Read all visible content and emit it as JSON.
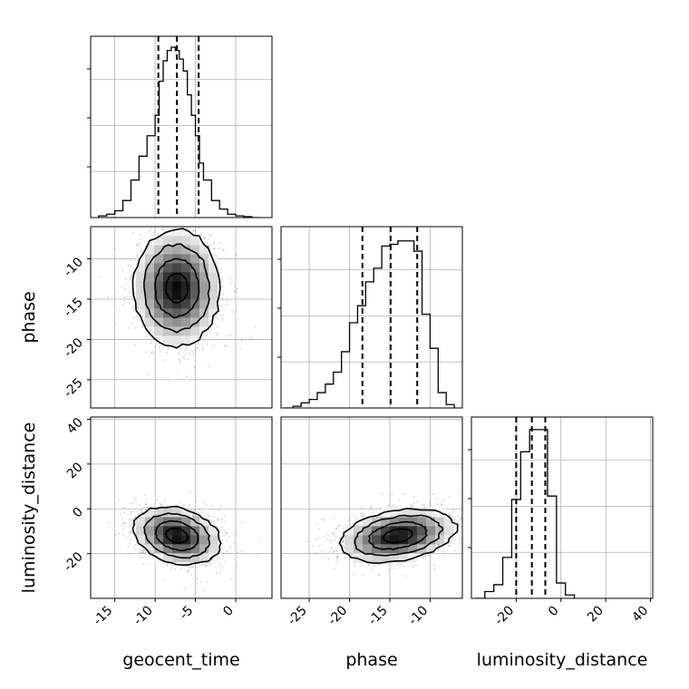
{
  "chart_data": {
    "type": "corner",
    "parameters": [
      "geocent_time",
      "phase",
      "luminosity_distance"
    ],
    "grid": true,
    "histograms": [
      {
        "parameter": "geocent_time",
        "range": [
          -18,
          4.5
        ],
        "bin_edges": [
          -17,
          -16,
          -15,
          -14,
          -13,
          -12,
          -11,
          -10,
          -9.5,
          -9,
          -8.5,
          -8,
          -7.5,
          -7,
          -6.5,
          -6,
          -5.5,
          -5,
          -4.5,
          -4,
          -3,
          -2,
          -1,
          0,
          1,
          2,
          3
        ],
        "counts": [
          0.01,
          0.02,
          0.04,
          0.1,
          0.22,
          0.36,
          0.48,
          0.6,
          0.8,
          0.92,
          0.98,
          1.0,
          0.98,
          0.93,
          0.86,
          0.72,
          0.6,
          0.48,
          0.32,
          0.22,
          0.1,
          0.05,
          0.02,
          0.01,
          0.005,
          0.0
        ],
        "quantiles": [
          -9.6,
          -7.3,
          -4.6
        ]
      },
      {
        "parameter": "phase",
        "range": [
          -28.5,
          -6
        ],
        "bin_edges": [
          -28,
          -27,
          -26,
          -25,
          -24,
          -23,
          -22,
          -21,
          -20,
          -19,
          -18,
          -17,
          -16,
          -15,
          -14,
          -13,
          -12,
          -11,
          -10,
          -9,
          -8,
          -7
        ],
        "counts": [
          0.0,
          0.01,
          0.03,
          0.05,
          0.09,
          0.14,
          0.21,
          0.33,
          0.5,
          0.6,
          0.74,
          0.82,
          0.95,
          0.96,
          0.98,
          0.98,
          0.92,
          0.55,
          0.35,
          0.09,
          0.02
        ],
        "quantiles": [
          -18.4,
          -14.9,
          -11.6
        ]
      },
      {
        "parameter": "luminosity_distance",
        "range": [
          -40,
          41
        ],
        "bin_edges": [
          -38,
          -34,
          -30,
          -26,
          -22,
          -18,
          -14,
          -10,
          -6,
          -2,
          2,
          6
        ],
        "counts": [
          0.0,
          0.04,
          0.08,
          0.24,
          0.58,
          0.86,
          0.99,
          0.99,
          0.6,
          0.09,
          0.02
        ],
        "quantiles": [
          -20,
          -13,
          -7
        ]
      }
    ],
    "scatter_2d": [
      {
        "x_param": "geocent_time",
        "y_param": "phase",
        "xlim": [
          -18,
          4.5
        ],
        "ylim": [
          -28.5,
          -6
        ],
        "center": [
          -7.3,
          -13.6
        ],
        "sigma": [
          2.7,
          3.6
        ],
        "correlation": 0.0
      },
      {
        "x_param": "geocent_time",
        "y_param": "luminosity_distance",
        "xlim": [
          -18,
          4.5
        ],
        "ylim": [
          -40,
          41
        ],
        "center": [
          -7.3,
          -12
        ],
        "sigma": [
          2.7,
          6.5
        ],
        "correlation": -0.25
      },
      {
        "x_param": "phase",
        "y_param": "luminosity_distance",
        "xlim": [
          -28.5,
          -6
        ],
        "ylim": [
          -40,
          41
        ],
        "center": [
          -14,
          -12
        ],
        "sigma": [
          3.6,
          6.0
        ],
        "correlation": 0.3
      }
    ],
    "ticks": {
      "geocent_time": [
        "-15",
        "-10",
        "-5",
        "0"
      ],
      "phase": [
        "-25",
        "-20",
        "-15",
        "-10"
      ],
      "luminosity_distance": [
        "-20",
        "0",
        "20",
        "40"
      ]
    },
    "axis_labels": {
      "x": [
        "geocent_time",
        "phase",
        "luminosity_distance"
      ],
      "y": [
        "phase",
        "luminosity_distance"
      ]
    }
  }
}
